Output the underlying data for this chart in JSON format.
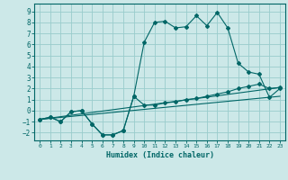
{
  "background_color": "#cce8e8",
  "grid_color": "#99cccc",
  "line_color": "#006666",
  "xlabel": "Humidex (Indice chaleur)",
  "xlim": [
    -0.5,
    23.5
  ],
  "ylim": [
    -2.7,
    9.7
  ],
  "xticks": [
    0,
    1,
    2,
    3,
    4,
    5,
    6,
    7,
    8,
    9,
    10,
    11,
    12,
    13,
    14,
    15,
    16,
    17,
    18,
    19,
    20,
    21,
    22,
    23
  ],
  "yticks": [
    -2,
    -1,
    0,
    1,
    2,
    3,
    4,
    5,
    6,
    7,
    8,
    9
  ],
  "series1_x": [
    0,
    1,
    2,
    3,
    4,
    5,
    6,
    7,
    8,
    9,
    10,
    11,
    12,
    13,
    14,
    15,
    16,
    17,
    18,
    19,
    20,
    21,
    22,
    23
  ],
  "series1_y": [
    -0.8,
    -0.6,
    -1.0,
    -0.1,
    -0.0,
    -1.2,
    -2.2,
    -2.2,
    -1.8,
    1.3,
    6.2,
    8.0,
    8.1,
    7.5,
    7.6,
    8.6,
    7.7,
    8.9,
    7.5,
    4.3,
    3.5,
    3.3,
    1.2,
    2.0
  ],
  "series2_x": [
    0,
    1,
    2,
    3,
    4,
    5,
    6,
    7,
    8,
    9,
    10,
    11,
    12,
    13,
    14,
    15,
    16,
    17,
    18,
    19,
    20,
    21,
    22,
    23
  ],
  "series2_y": [
    -0.8,
    -0.6,
    -1.0,
    -0.1,
    -0.0,
    -1.2,
    -2.2,
    -2.2,
    -1.8,
    1.3,
    0.5,
    0.5,
    0.7,
    0.8,
    1.0,
    1.1,
    1.3,
    1.5,
    1.7,
    2.0,
    2.2,
    2.4,
    2.0,
    2.1
  ],
  "series3_x": [
    0,
    23
  ],
  "series3_y": [
    -0.8,
    2.1
  ],
  "series4_x": [
    0,
    23
  ],
  "series4_y": [
    -0.8,
    1.3
  ]
}
